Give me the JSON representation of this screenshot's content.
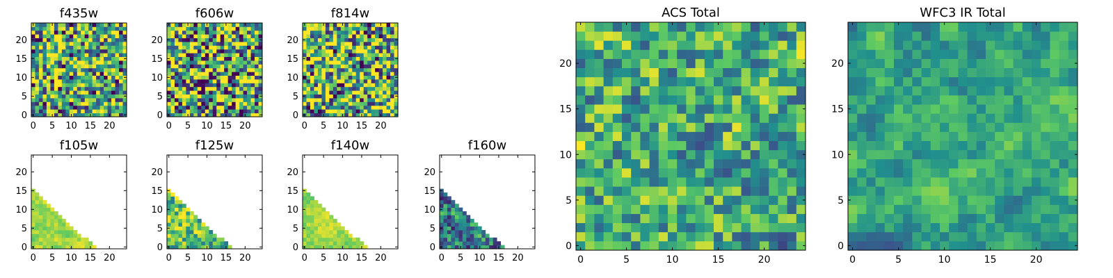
{
  "chart_data": [
    {
      "id": "f435w",
      "type": "heatmap",
      "title": "f435w",
      "mask": "full",
      "xlim": [
        0,
        24
      ],
      "ylim": [
        0,
        24
      ],
      "xticks": [
        "0",
        "5",
        "10",
        "15",
        "20"
      ],
      "yticks": [
        "0",
        "5",
        "10",
        "15",
        "20"
      ]
    },
    {
      "id": "f606w",
      "type": "heatmap",
      "title": "f606w",
      "mask": "full",
      "xlim": [
        0,
        24
      ],
      "ylim": [
        0,
        24
      ],
      "xticks": [
        "0",
        "5",
        "10",
        "15",
        "20"
      ],
      "yticks": [
        "0",
        "5",
        "10",
        "15",
        "20"
      ]
    },
    {
      "id": "f814w",
      "type": "heatmap",
      "title": "f814w",
      "mask": "full",
      "xlim": [
        0,
        24
      ],
      "ylim": [
        0,
        24
      ],
      "xticks": [
        "0",
        "5",
        "10",
        "15",
        "20"
      ],
      "yticks": [
        "0",
        "5",
        "10",
        "15",
        "20"
      ]
    },
    {
      "id": "f105w",
      "type": "heatmap",
      "title": "f105w",
      "mask": "triangle",
      "xlim": [
        0,
        24
      ],
      "ylim": [
        0,
        24
      ],
      "xticks": [
        "0",
        "5",
        "10",
        "15",
        "20"
      ],
      "yticks": [
        "0",
        "5",
        "10",
        "15",
        "20"
      ]
    },
    {
      "id": "f125w",
      "type": "heatmap",
      "title": "f125w",
      "mask": "triangle",
      "xlim": [
        0,
        24
      ],
      "ylim": [
        0,
        24
      ],
      "xticks": [
        "0",
        "5",
        "10",
        "15",
        "20"
      ],
      "yticks": [
        "0",
        "5",
        "10",
        "15",
        "20"
      ]
    },
    {
      "id": "f140w",
      "type": "heatmap",
      "title": "f140w",
      "mask": "triangle",
      "xlim": [
        0,
        24
      ],
      "ylim": [
        0,
        24
      ],
      "xticks": [
        "0",
        "5",
        "10",
        "15",
        "20"
      ],
      "yticks": [
        "0",
        "5",
        "10",
        "15",
        "20"
      ]
    },
    {
      "id": "f160w",
      "type": "heatmap",
      "title": "f160w",
      "mask": "triangle",
      "xlim": [
        0,
        24
      ],
      "ylim": [
        0,
        24
      ],
      "xticks": [
        "0",
        "5",
        "10",
        "15",
        "20"
      ],
      "yticks": [
        "0",
        "5",
        "10",
        "15",
        "20"
      ]
    },
    {
      "id": "acs-total",
      "type": "heatmap",
      "title": "ACS Total",
      "mask": "full",
      "xlim": [
        0,
        24
      ],
      "ylim": [
        0,
        24
      ],
      "xticks": [
        "0",
        "5",
        "10",
        "15",
        "20"
      ],
      "yticks": [
        "0",
        "5",
        "10",
        "15",
        "20"
      ]
    },
    {
      "id": "wfc3-ir-total",
      "type": "heatmap",
      "title": "WFC3 IR Total",
      "mask": "full",
      "xlim": [
        0,
        24
      ],
      "ylim": [
        0,
        24
      ],
      "xticks": [
        "0",
        "5",
        "10",
        "15",
        "20"
      ],
      "yticks": [
        "0",
        "5",
        "10",
        "15",
        "20"
      ]
    }
  ],
  "colormap": [
    "#440154",
    "#3b528b",
    "#21908d",
    "#5dc963",
    "#fde725"
  ]
}
